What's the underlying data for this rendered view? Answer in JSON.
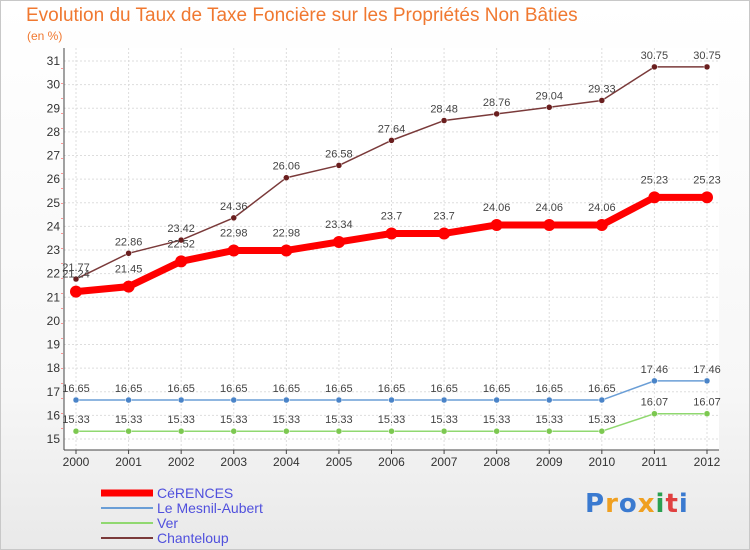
{
  "title": "Evolution du Taux de Taxe Foncière sur les Propriétés Non Bâties",
  "subtitle": "(en %)",
  "logo": {
    "letters": [
      "P",
      "r",
      "o",
      "x",
      "i",
      "t",
      "i"
    ],
    "colors": [
      "#3a7ad0",
      "#f0a020",
      "#3a7ad0",
      "#f0a020",
      "#2aa050",
      "#e04040",
      "#3a7ad0"
    ]
  },
  "chart_data": {
    "type": "line",
    "x": [
      "2000",
      "2001",
      "2002",
      "2003",
      "2004",
      "2005",
      "2006",
      "2007",
      "2008",
      "2009",
      "2010",
      "2011",
      "2012"
    ],
    "y_ticks": [
      "15",
      "16",
      "17",
      "18",
      "19",
      "20",
      "21",
      "22",
      "23",
      "24",
      "25",
      "26",
      "27",
      "28",
      "29",
      "30",
      "31"
    ],
    "ylim": [
      15,
      31
    ],
    "grid": true,
    "legend_position": "bottom-left",
    "series": [
      {
        "name": "CéRENCES",
        "color": "#ff0000",
        "marker_color": "#ff0000",
        "width": 7,
        "marker_r": 6,
        "values": [
          21.24,
          21.45,
          22.52,
          22.98,
          22.98,
          23.34,
          23.7,
          23.7,
          24.06,
          24.06,
          24.06,
          25.23,
          25.23
        ],
        "labels": [
          "21.24",
          "21.45",
          "22.52",
          "22.98",
          "22.98",
          "23.34",
          "23.7",
          "23.7",
          "24.06",
          "24.06",
          "24.06",
          "25.23",
          "25.23"
        ]
      },
      {
        "name": "Le Mesnil-Aubert",
        "color": "#6a9ed6",
        "marker_color": "#4a84c8",
        "width": 1.5,
        "marker_r": 3,
        "values": [
          16.65,
          16.65,
          16.65,
          16.65,
          16.65,
          16.65,
          16.65,
          16.65,
          16.65,
          16.65,
          16.65,
          17.46,
          17.46
        ],
        "labels": [
          "16.65",
          "16.65",
          "16.65",
          "16.65",
          "16.65",
          "16.65",
          "16.65",
          "16.65",
          "16.65",
          "16.65",
          "16.65",
          "17.46",
          "17.46"
        ]
      },
      {
        "name": "Ver",
        "color": "#90d870",
        "marker_color": "#7cc850",
        "width": 1.5,
        "marker_r": 3,
        "values": [
          15.33,
          15.33,
          15.33,
          15.33,
          15.33,
          15.33,
          15.33,
          15.33,
          15.33,
          15.33,
          15.33,
          16.07,
          16.07
        ],
        "labels": [
          "15.33",
          "15.33",
          "15.33",
          "15.33",
          "15.33",
          "15.33",
          "15.33",
          "15.33",
          "15.33",
          "15.33",
          "15.33",
          "16.07",
          "16.07"
        ]
      },
      {
        "name": "Chanteloup",
        "color": "#7a3a3a",
        "marker_color": "#6a1e1e",
        "width": 1.5,
        "marker_r": 3,
        "values": [
          21.77,
          22.86,
          23.42,
          24.36,
          26.06,
          26.58,
          27.64,
          28.48,
          28.76,
          29.04,
          29.33,
          30.75,
          30.75
        ],
        "labels": [
          "21.77",
          "22.86",
          "23.42",
          "24.36",
          "26.06",
          "26.58",
          "27.64",
          "28.48",
          "28.76",
          "29.04",
          "29.33",
          "30.75",
          "30.75"
        ]
      }
    ]
  }
}
